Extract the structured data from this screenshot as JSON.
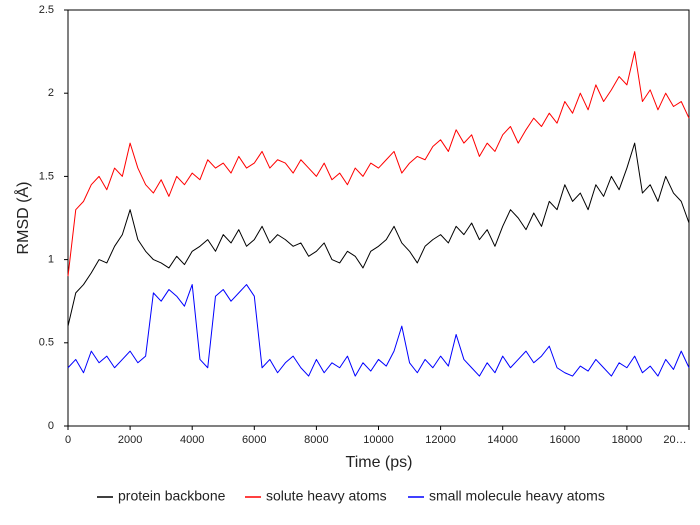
{
  "chart_data": {
    "type": "line",
    "xlabel": "Time (ps)",
    "ylabel": "RMSD (Å)",
    "x": [
      0,
      250,
      500,
      750,
      1000,
      1250,
      1500,
      1750,
      2000,
      2250,
      2500,
      2750,
      3000,
      3250,
      3500,
      3750,
      4000,
      4250,
      4500,
      4750,
      5000,
      5250,
      5500,
      5750,
      6000,
      6250,
      6500,
      6750,
      7000,
      7250,
      7500,
      7750,
      8000,
      8250,
      8500,
      8750,
      9000,
      9250,
      9500,
      9750,
      10000,
      10250,
      10500,
      10750,
      11000,
      11250,
      11500,
      11750,
      12000,
      12250,
      12500,
      12750,
      13000,
      13250,
      13500,
      13750,
      14000,
      14250,
      14500,
      14750,
      15000,
      15250,
      15500,
      15750,
      16000,
      16250,
      16500,
      16750,
      17000,
      17250,
      17500,
      17750,
      18000,
      18250,
      18500,
      18750,
      19000,
      19250,
      19500,
      19750,
      20000
    ],
    "series": [
      {
        "name": "protein backbone",
        "color": "#000000",
        "values": [
          0.6,
          0.8,
          0.85,
          0.92,
          1.0,
          0.98,
          1.08,
          1.15,
          1.3,
          1.12,
          1.05,
          1.0,
          0.98,
          0.95,
          1.02,
          0.97,
          1.05,
          1.08,
          1.12,
          1.05,
          1.15,
          1.1,
          1.18,
          1.08,
          1.12,
          1.2,
          1.1,
          1.15,
          1.12,
          1.08,
          1.1,
          1.02,
          1.05,
          1.1,
          1.0,
          0.98,
          1.05,
          1.02,
          0.95,
          1.05,
          1.08,
          1.12,
          1.2,
          1.1,
          1.05,
          0.98,
          1.08,
          1.12,
          1.15,
          1.1,
          1.2,
          1.15,
          1.22,
          1.12,
          1.18,
          1.08,
          1.2,
          1.3,
          1.25,
          1.18,
          1.28,
          1.2,
          1.35,
          1.3,
          1.45,
          1.35,
          1.4,
          1.3,
          1.45,
          1.38,
          1.5,
          1.42,
          1.55,
          1.7,
          1.4,
          1.45,
          1.35,
          1.5,
          1.4,
          1.35,
          1.22
        ]
      },
      {
        "name": "solute heavy atoms",
        "color": "#ff0000",
        "values": [
          0.9,
          1.3,
          1.35,
          1.45,
          1.5,
          1.42,
          1.55,
          1.5,
          1.7,
          1.55,
          1.45,
          1.4,
          1.48,
          1.38,
          1.5,
          1.45,
          1.52,
          1.48,
          1.6,
          1.55,
          1.58,
          1.52,
          1.62,
          1.55,
          1.58,
          1.65,
          1.55,
          1.6,
          1.58,
          1.52,
          1.6,
          1.55,
          1.5,
          1.58,
          1.48,
          1.52,
          1.45,
          1.55,
          1.5,
          1.58,
          1.55,
          1.6,
          1.65,
          1.52,
          1.58,
          1.62,
          1.6,
          1.68,
          1.72,
          1.65,
          1.78,
          1.7,
          1.75,
          1.62,
          1.7,
          1.65,
          1.75,
          1.8,
          1.7,
          1.78,
          1.85,
          1.8,
          1.88,
          1.82,
          1.95,
          1.88,
          2.0,
          1.9,
          2.05,
          1.95,
          2.02,
          2.1,
          2.05,
          2.25,
          1.95,
          2.02,
          1.9,
          2.0,
          1.92,
          1.95,
          1.85
        ]
      },
      {
        "name": "small molecule heavy atoms",
        "color": "#0000ff",
        "values": [
          0.35,
          0.4,
          0.32,
          0.45,
          0.38,
          0.42,
          0.35,
          0.4,
          0.45,
          0.38,
          0.42,
          0.8,
          0.75,
          0.82,
          0.78,
          0.72,
          0.85,
          0.4,
          0.35,
          0.78,
          0.82,
          0.75,
          0.8,
          0.85,
          0.78,
          0.35,
          0.4,
          0.32,
          0.38,
          0.42,
          0.35,
          0.3,
          0.4,
          0.32,
          0.38,
          0.35,
          0.42,
          0.3,
          0.38,
          0.33,
          0.4,
          0.36,
          0.45,
          0.6,
          0.38,
          0.32,
          0.4,
          0.35,
          0.42,
          0.36,
          0.55,
          0.4,
          0.35,
          0.3,
          0.38,
          0.32,
          0.42,
          0.35,
          0.4,
          0.45,
          0.38,
          0.42,
          0.48,
          0.35,
          0.32,
          0.3,
          0.36,
          0.33,
          0.4,
          0.35,
          0.3,
          0.38,
          0.35,
          0.42,
          0.32,
          0.36,
          0.3,
          0.4,
          0.34,
          0.45,
          0.35
        ]
      }
    ],
    "xlim": [
      0,
      20000
    ],
    "xticks": [
      0,
      2000,
      4000,
      6000,
      8000,
      10000,
      12000,
      14000,
      16000,
      18000,
      {
        "value": 20000,
        "label": "20…"
      }
    ],
    "ylim": [
      0,
      2.5
    ],
    "yticks": [
      0,
      0.5,
      1,
      1.5,
      2,
      2.5
    ],
    "legend": "bottom"
  }
}
